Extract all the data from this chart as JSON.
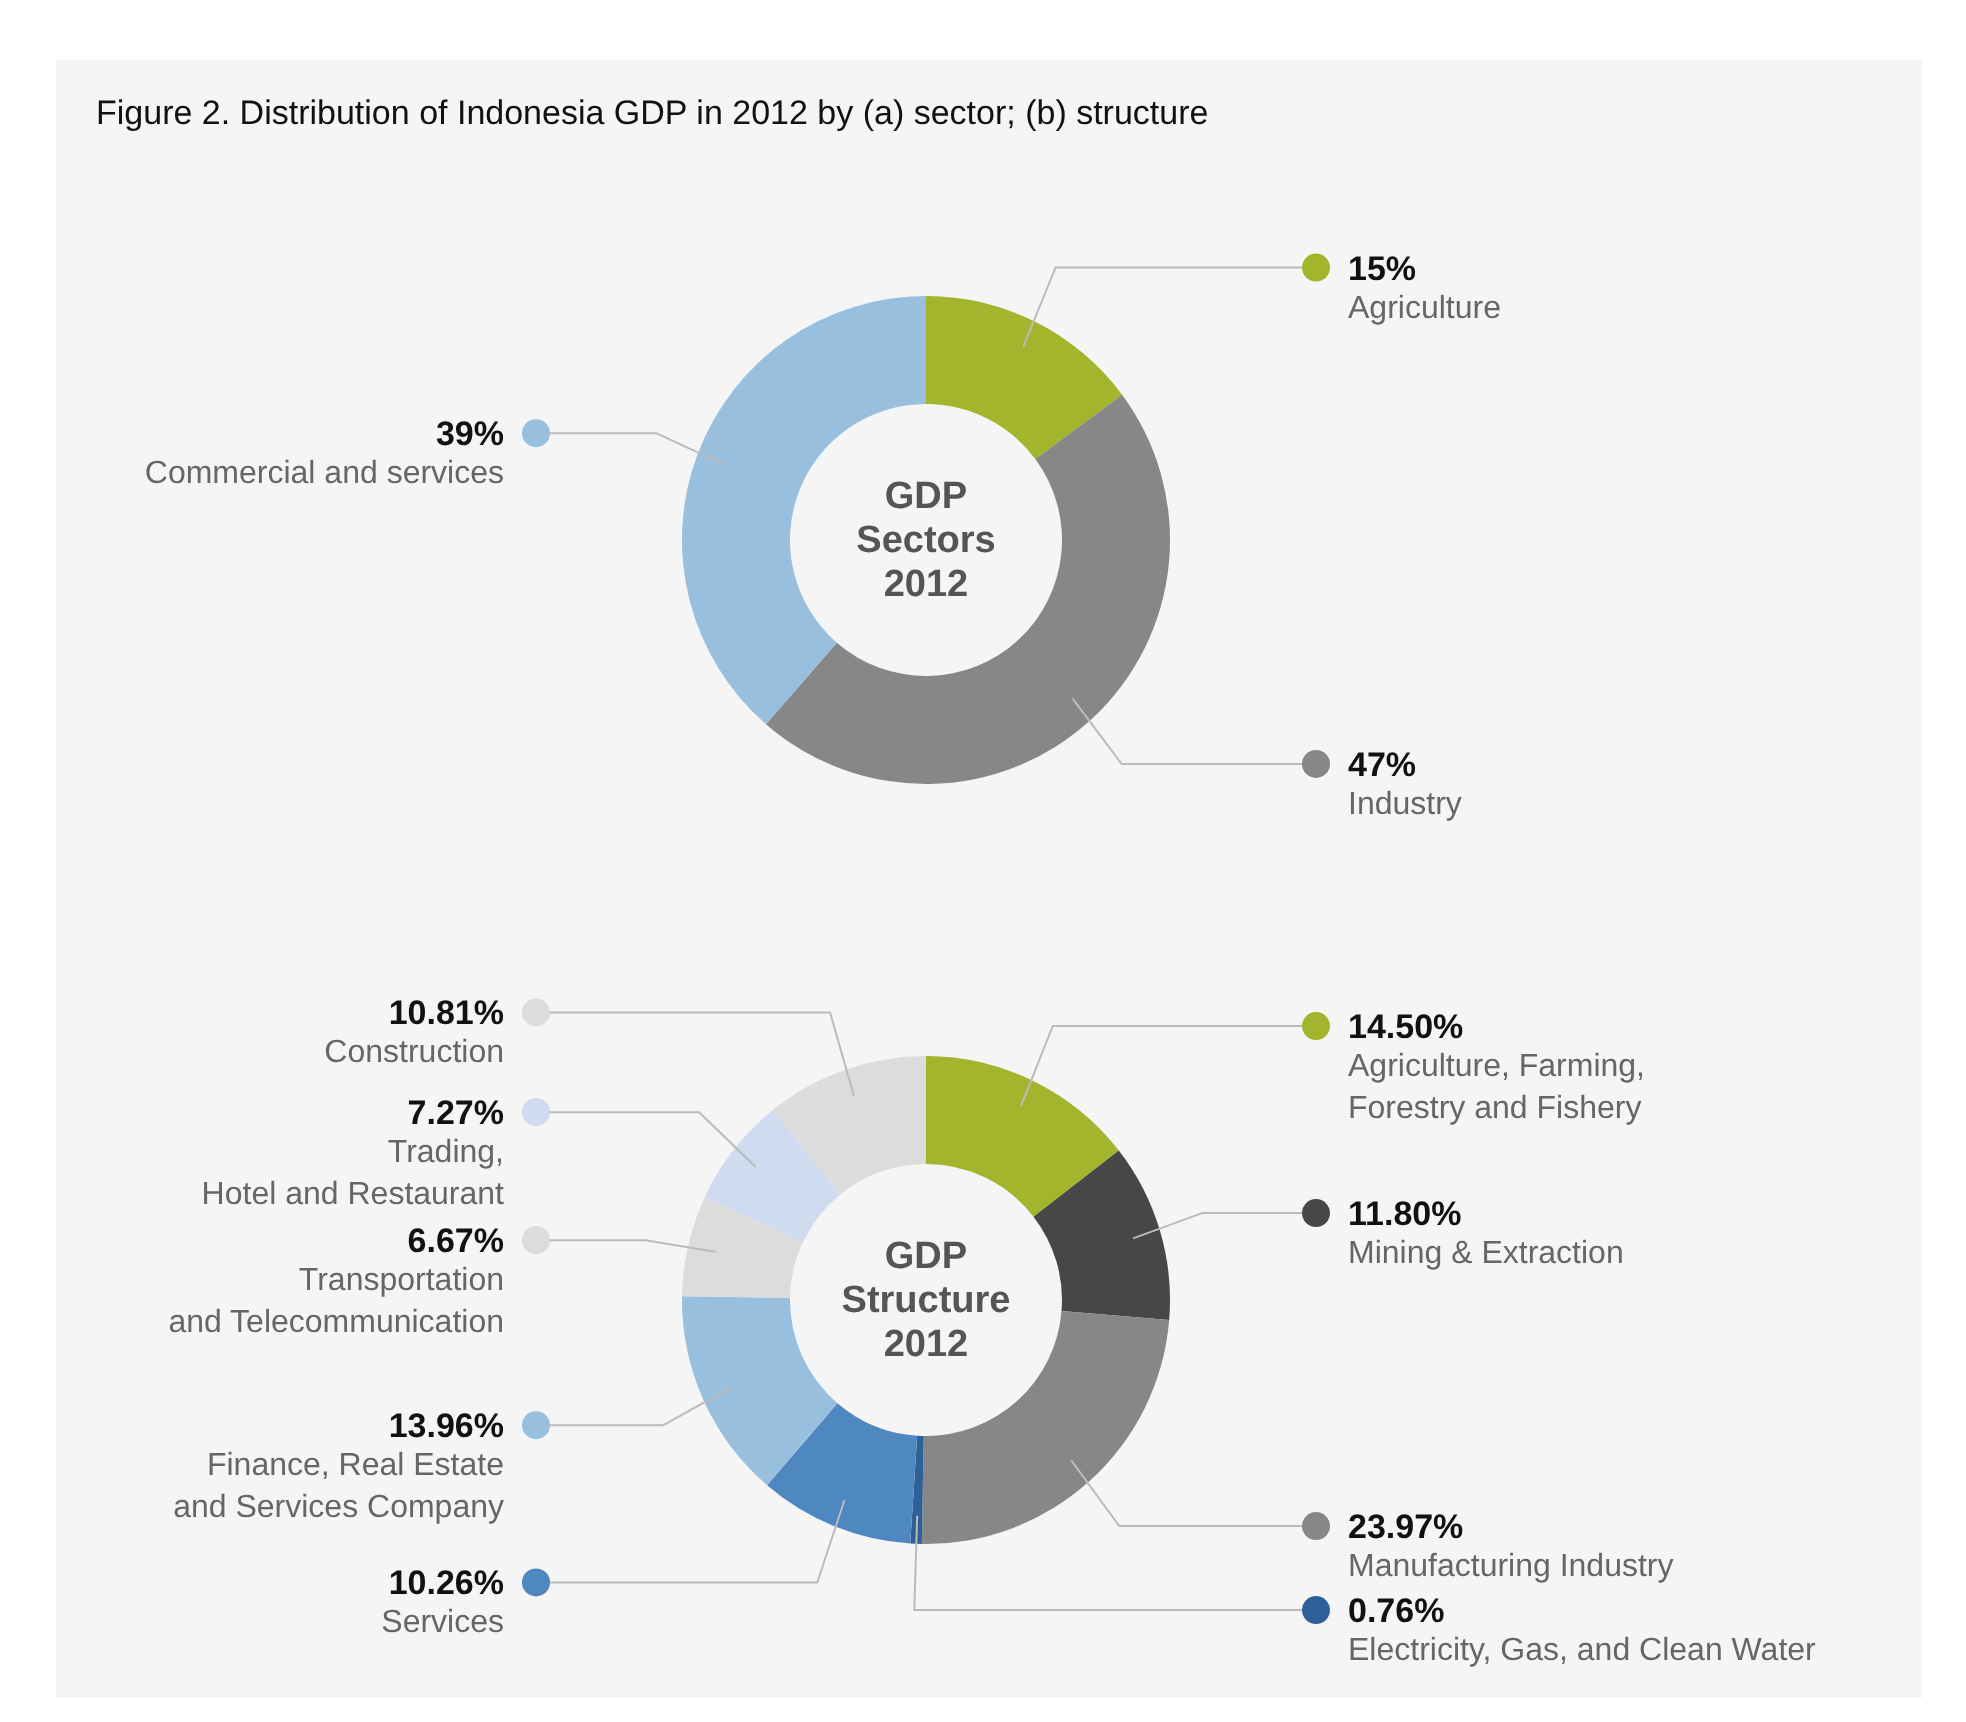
{
  "chart_data": [
    {
      "type": "donut",
      "title": "GDP\nSectors\n2012",
      "annotations": [
        "Figure 2. Distribution of Indonesia GDP in 2012 by (a) sector; (b) structure"
      ],
      "categories": [
        "Agriculture",
        "Industry",
        "Commercial and services"
      ],
      "values": [
        15,
        47,
        39
      ],
      "value_labels": [
        "15%",
        "47%",
        "39%"
      ],
      "colors": [
        "#a2b52c",
        "#878787",
        "#99bfdf"
      ],
      "legend": "top left"
    },
    {
      "type": "donut",
      "title": "GDP\nStructure\n2012",
      "categories": [
        "Agriculture, Farming,\nForestry and Fishery",
        "Mining & Extraction",
        "Manufacturing Industry",
        "Electricity, Gas, and Clean Water",
        "Services",
        "Finance, Real Estate\nand Services Company",
        "Transportation\nand Telecommunication",
        "Trading,\nHotel and Restaurant",
        "Construction"
      ],
      "values": [
        14.5,
        11.8,
        23.97,
        0.76,
        10.26,
        13.96,
        6.67,
        7.27,
        10.81
      ],
      "value_labels": [
        "14.50%",
        "11.80%",
        "23.97%",
        "0.76%",
        "10.26%",
        "13.96%",
        "6.67%",
        "7.27%",
        "10.81%"
      ],
      "colors": [
        "#a2b52c",
        "#474747",
        "#878787",
        "#2f5f98",
        "#4f87c0",
        "#99bfdf",
        "#dcdcdc",
        "#cfdcf0",
        "#dcdcdc"
      ],
      "legend": "bottom right"
    }
  ]
}
